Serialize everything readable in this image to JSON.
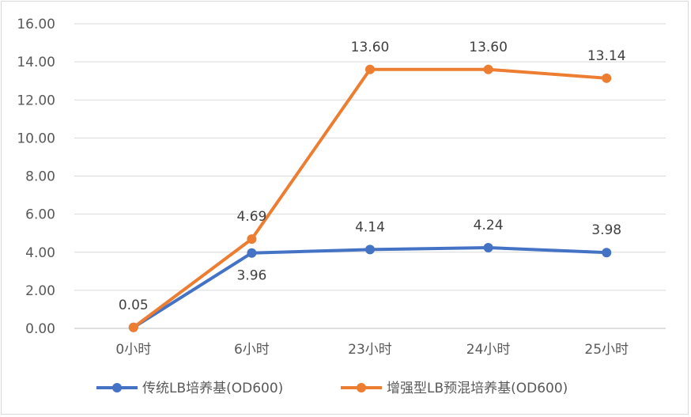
{
  "chart_data": {
    "type": "line",
    "title": "",
    "xlabel": "",
    "ylabel": "",
    "categories": [
      "0小时",
      "6小时",
      "23小时",
      "24小时",
      "25小时"
    ],
    "ylim": [
      0,
      16
    ],
    "ytick_values": [
      0,
      2,
      4,
      6,
      8,
      10,
      12,
      14,
      16
    ],
    "ytick_labels": [
      "0.00",
      "2.00",
      "4.00",
      "6.00",
      "8.00",
      "10.00",
      "12.00",
      "14.00",
      "16.00"
    ],
    "grid": true,
    "legend_position": "bottom",
    "series": [
      {
        "name": "传统LB培养基(OD600)",
        "color": "#4472c4",
        "values": [
          0.05,
          3.96,
          4.14,
          4.24,
          3.98
        ],
        "labels": [
          "0.05",
          "3.96",
          "4.14",
          "4.24",
          "3.98"
        ],
        "label_positions": [
          "above",
          "below",
          "above",
          "above",
          "above"
        ]
      },
      {
        "name": "增强型LB预混培养基(OD600)",
        "color": "#ed7d31",
        "values": [
          0.05,
          4.69,
          13.6,
          13.6,
          13.14
        ],
        "labels": [
          "",
          "4.69",
          "13.60",
          "13.60",
          "13.14"
        ],
        "label_positions": [
          "above",
          "above",
          "above",
          "above",
          "above"
        ]
      }
    ]
  }
}
